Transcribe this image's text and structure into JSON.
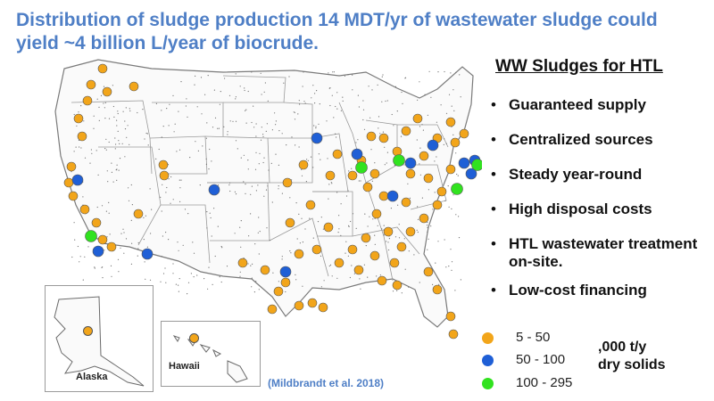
{
  "title": {
    "bold": "Distribution of sludge production",
    "rest": " 14 MDT/yr of wastewater sludge could yield ~4 billion L/year of biocrude."
  },
  "panel": {
    "title": "WW Sludges for HTL",
    "bullets": [
      "Guaranteed supply",
      "Centralized sources",
      "Steady year-round",
      "High disposal costs",
      "HTL wastewater treatment on-site.",
      "Low-cost financing"
    ]
  },
  "legend": {
    "items": [
      {
        "label": "5 - 50",
        "color": "#f2a51a"
      },
      {
        "label": "50 - 100",
        "color": "#1f5fd6"
      },
      {
        "label": "100 - 295",
        "color": "#31e21f"
      }
    ],
    "units_line1": ",000 t/y",
    "units_line2": "dry solids"
  },
  "insets": {
    "alaska": "Alaska",
    "hawaii": "Hawaii"
  },
  "citation": "(Mildbrandt et al. 2018)",
  "colors": {
    "title": "#4f7fc6",
    "small_marker": "#f2a51a",
    "medium_marker": "#1f5fd6",
    "large_marker": "#31e21f",
    "state_border": "#8a8a8a"
  }
}
